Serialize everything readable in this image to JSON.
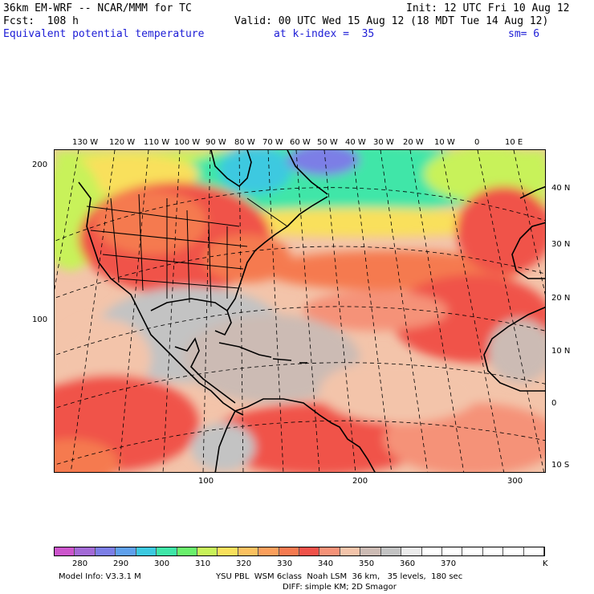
{
  "header": {
    "model_line": "36km EM-WRF -- NCAR/MMM for TC",
    "init_line": "Init: 12 UTC Fri 10 Aug 12",
    "fcst_line": "Fcst:  108 h",
    "valid_line": "Valid: 00 UTC Wed 15 Aug 12 (18 MDT Tue 14 Aug 12)",
    "field_name": "Equivalent potential temperature",
    "kindex": "at k-index =  35",
    "smoothing": "sm= 6"
  },
  "top_longitude_labels": [
    "130 W",
    "120 W",
    "110 W",
    "100 W",
    "90 W",
    "80 W",
    "70 W",
    "60 W",
    "50 W",
    "40 W",
    "30 W",
    "20 W",
    "10 W",
    "0",
    "10 E"
  ],
  "right_latitude_labels": [
    "40 N",
    "30 N",
    "20 N",
    "10 N",
    "0",
    "10 S"
  ],
  "left_grid_labels": [
    "200",
    "100"
  ],
  "bottom_grid_labels": [
    "100",
    "200",
    "300"
  ],
  "colorbar": {
    "colors": [
      "#cc55cc",
      "#a36ad6",
      "#7c7ee6",
      "#5fa0ec",
      "#3cc9e0",
      "#3fe6a8",
      "#6af06c",
      "#c8f25a",
      "#f9e05c",
      "#fbc160",
      "#fb9f5c",
      "#f57a50",
      "#f0524a",
      "#f59278",
      "#f3c4aa",
      "#ccbbb4",
      "#c3c3c3",
      "#ececec",
      "#ffffff",
      "#ffffff",
      "#ffffff",
      "#ffffff",
      "#ffffff",
      "#ffffff"
    ],
    "tick_labels": [
      "280",
      "290",
      "300",
      "310",
      "320",
      "330",
      "340",
      "350",
      "360",
      "370"
    ],
    "units": "K"
  },
  "footer": {
    "model_info": "Model Info: V3.3.1 M",
    "physics": "YSU PBL  WSM 6class  Noah LSM  36 km,   35 levels,  180 sec",
    "diffusion": "DIFF: simple KM; 2D Smagor"
  }
}
